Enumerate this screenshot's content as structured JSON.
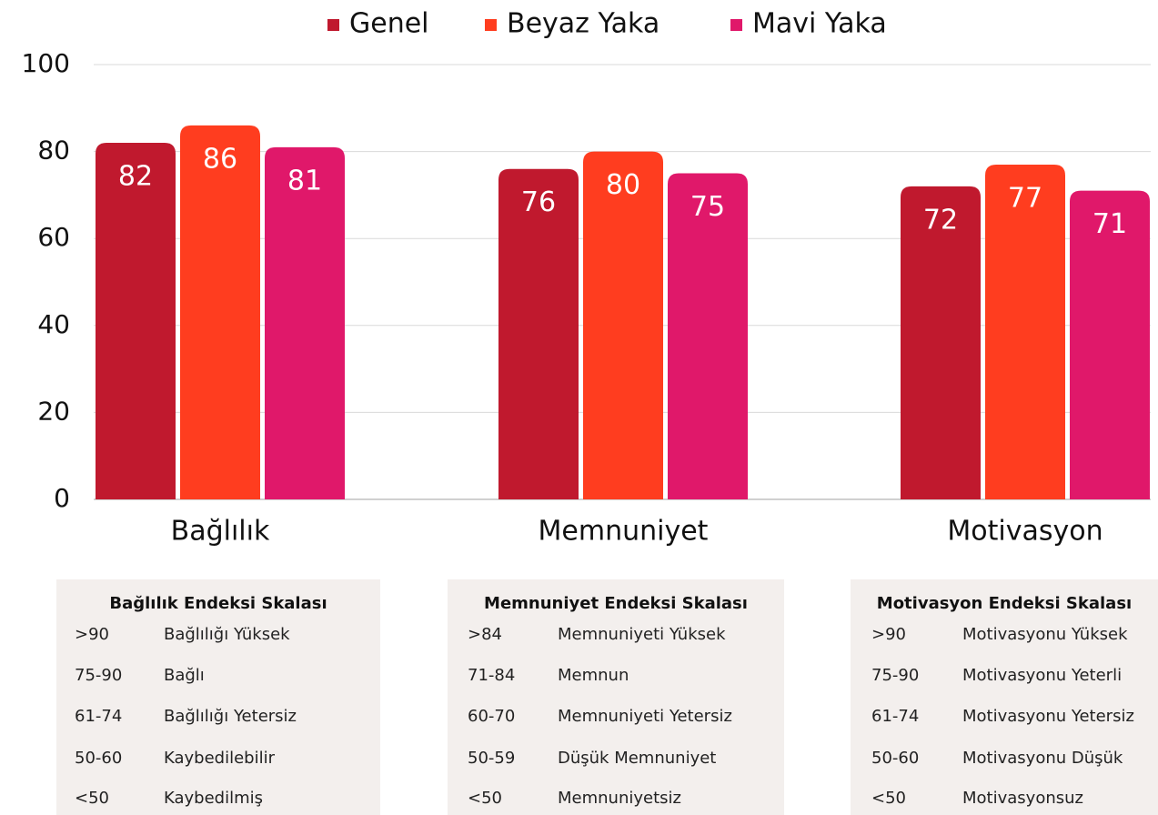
{
  "chart_data": {
    "type": "bar",
    "categories": [
      "Bağlılık",
      "Memnuniyet",
      "Motivasyon"
    ],
    "series": [
      {
        "name": "Genel",
        "color": "#c0192e",
        "values": [
          82,
          76,
          72
        ]
      },
      {
        "name": "Beyaz Yaka",
        "color": "#ff3d1f",
        "values": [
          86,
          80,
          77
        ]
      },
      {
        "name": "Mavi Yaka",
        "color": "#e0186a",
        "values": [
          81,
          75,
          71
        ]
      }
    ],
    "ylim": [
      0,
      100
    ],
    "yticks": [
      0,
      20,
      40,
      60,
      80,
      100
    ],
    "grid": true,
    "legend": "top"
  },
  "tables": [
    {
      "title": "Bağlılık Endeksi Skalası",
      "rows": [
        [
          ">90",
          "Bağlılığı Yüksek"
        ],
        [
          "75-90",
          "Bağlı"
        ],
        [
          "61-74",
          "Bağlılığı Yetersiz"
        ],
        [
          "50-60",
          "Kaybedilebilir"
        ],
        [
          "<50",
          "Kaybedilmiş"
        ]
      ]
    },
    {
      "title": "Memnuniyet Endeksi Skalası",
      "rows": [
        [
          ">84",
          "Memnuniyeti Yüksek"
        ],
        [
          "71-84",
          "Memnun"
        ],
        [
          "60-70",
          "Memnuniyeti Yetersiz"
        ],
        [
          "50-59",
          "Düşük Memnuniyet"
        ],
        [
          "<50",
          "Memnuniyetsiz"
        ]
      ]
    },
    {
      "title": "Motivasyon Endeksi Skalası",
      "rows": [
        [
          ">90",
          "Motivasyonu Yüksek"
        ],
        [
          "75-90",
          "Motivasyonu Yeterli"
        ],
        [
          "61-74",
          "Motivasyonu Yetersiz"
        ],
        [
          "50-60",
          "Motivasyonu Düşük"
        ],
        [
          "<50",
          "Motivasyonsuz"
        ]
      ]
    }
  ]
}
